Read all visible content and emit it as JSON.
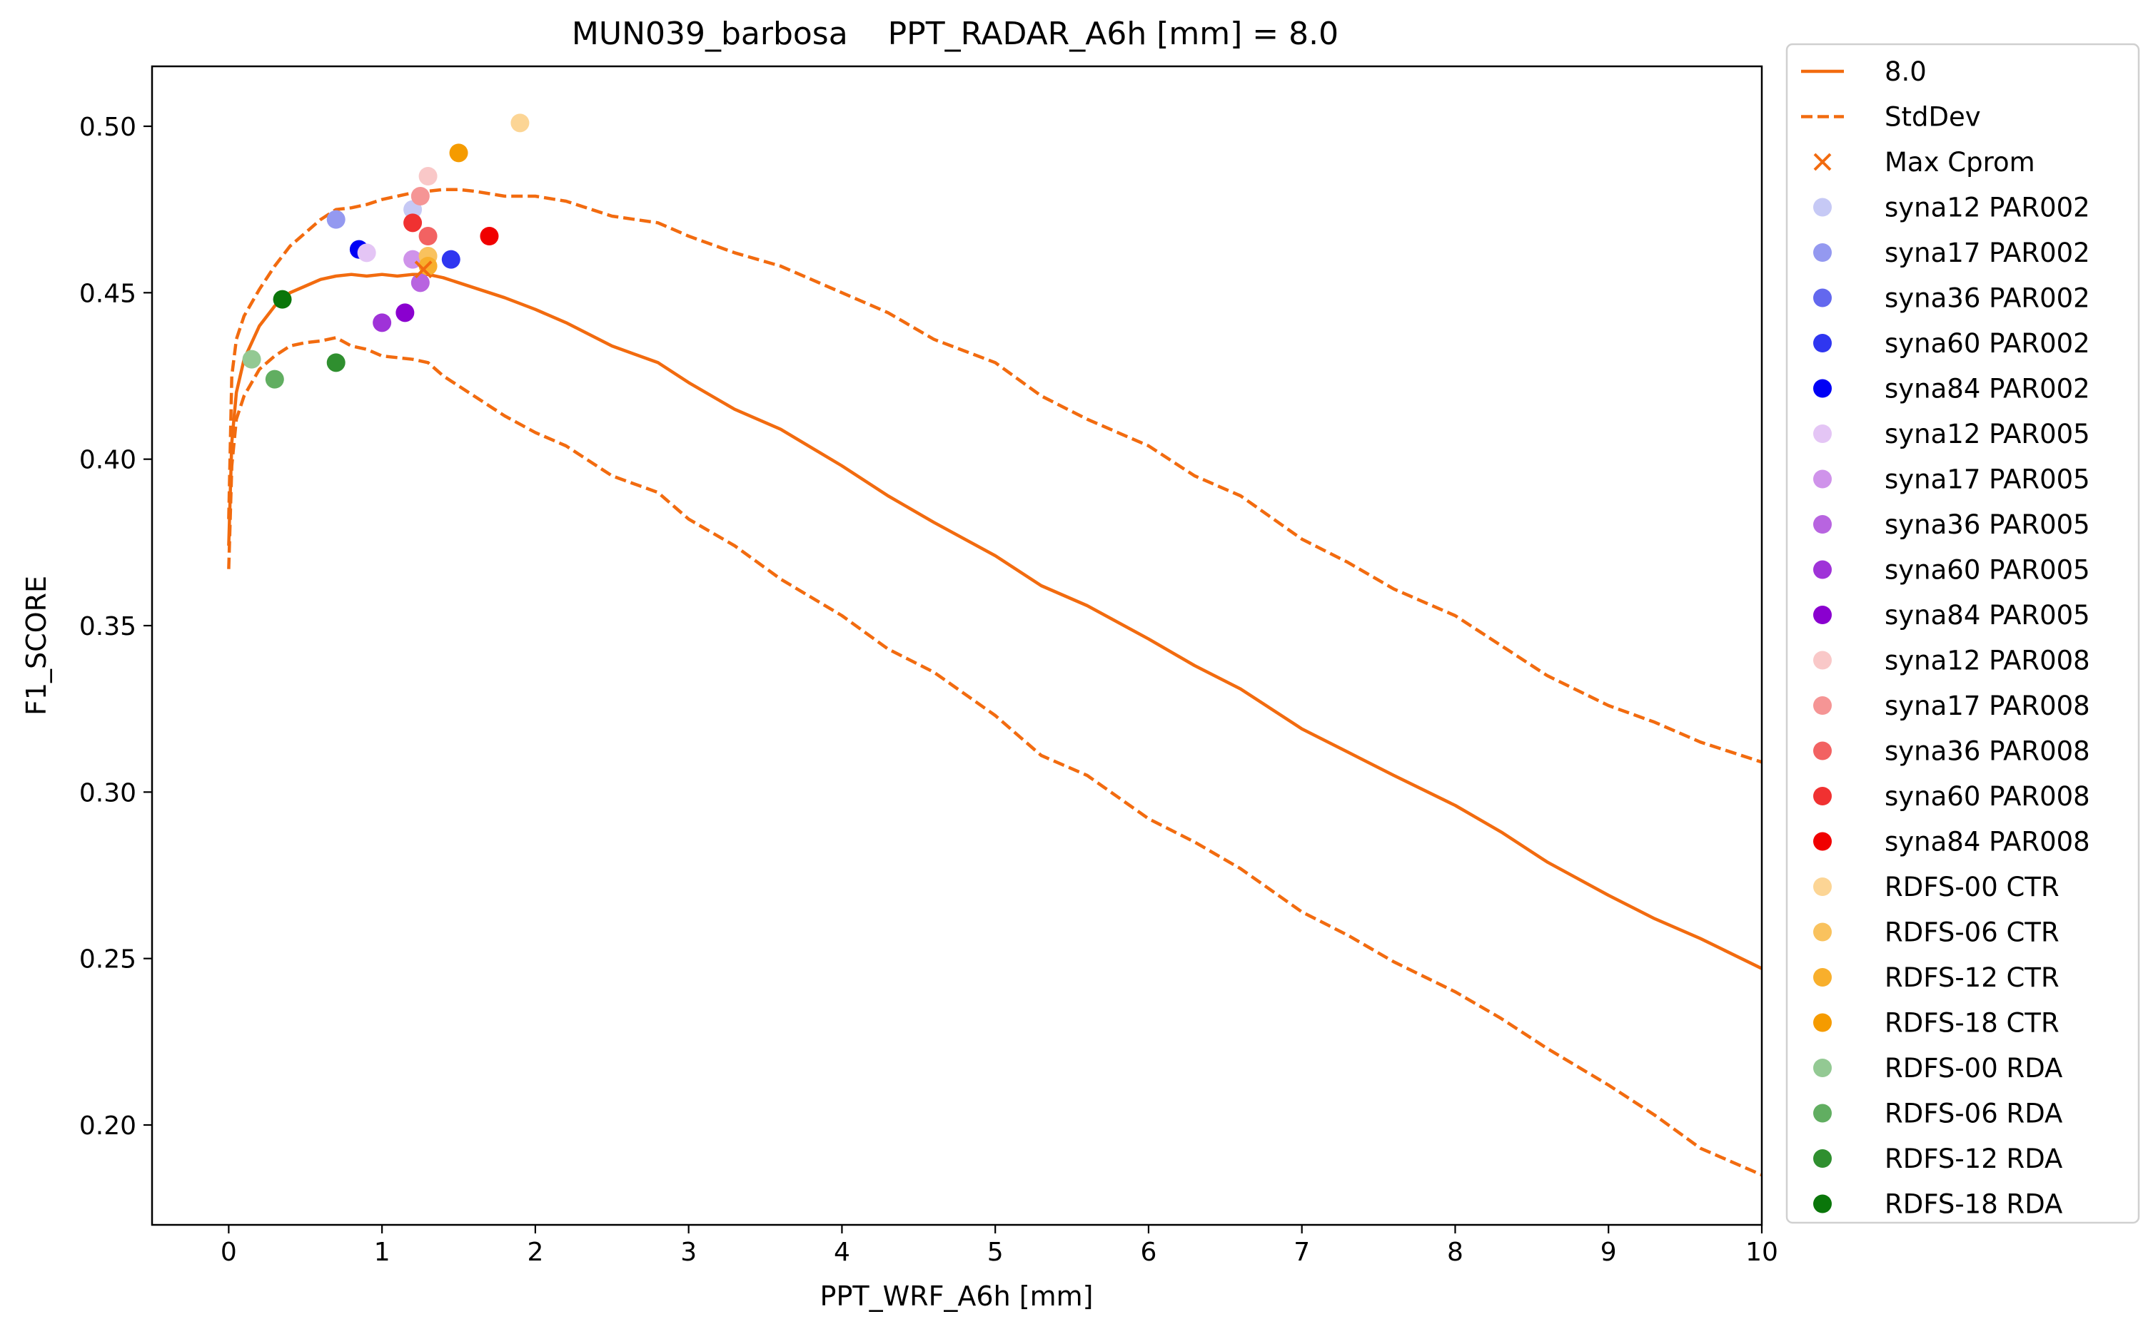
{
  "chart_data": {
    "type": "line",
    "title": "MUN039_barbosa    PPT_RADAR_A6h [mm] = 8.0",
    "xlabel": "PPT_WRF_A6h [mm]",
    "ylabel": "F1_SCORE",
    "xlim": [
      -0.5,
      10
    ],
    "ylim": [
      0.17,
      0.518
    ],
    "xticks": [
      0,
      1,
      2,
      3,
      4,
      5,
      6,
      7,
      8,
      9,
      10
    ],
    "yticks": [
      0.2,
      0.25,
      0.3,
      0.35,
      0.4,
      0.45,
      0.5
    ],
    "yticklabels": [
      "0.20",
      "0.25",
      "0.30",
      "0.35",
      "0.40",
      "0.45",
      "0.50"
    ],
    "grid": false,
    "legend_position": "outside-right",
    "line_color": "#f26b0f",
    "series": [
      {
        "name": "8.0",
        "style": "solid",
        "x": [
          0,
          0.02,
          0.05,
          0.1,
          0.2,
          0.3,
          0.4,
          0.5,
          0.6,
          0.7,
          0.8,
          0.9,
          1.0,
          1.1,
          1.2,
          1.3,
          1.4,
          1.5,
          1.6,
          1.8,
          2.0,
          2.2,
          2.5,
          2.8,
          3.0,
          3.3,
          3.6,
          4.0,
          4.3,
          4.6,
          5.0,
          5.3,
          5.6,
          6.0,
          6.3,
          6.6,
          7.0,
          7.3,
          7.6,
          8.0,
          8.3,
          8.6,
          9.0,
          9.3,
          9.6,
          10.0
        ],
        "y": [
          0.374,
          0.405,
          0.42,
          0.43,
          0.44,
          0.446,
          0.45,
          0.452,
          0.454,
          0.455,
          0.4555,
          0.455,
          0.4555,
          0.455,
          0.4555,
          0.4555,
          0.4545,
          0.453,
          0.4515,
          0.4485,
          0.445,
          0.441,
          0.434,
          0.429,
          0.423,
          0.415,
          0.409,
          0.398,
          0.389,
          0.381,
          0.371,
          0.362,
          0.356,
          0.346,
          0.338,
          0.331,
          0.319,
          0.312,
          0.305,
          0.296,
          0.288,
          0.279,
          0.269,
          0.262,
          0.256,
          0.247
        ]
      },
      {
        "name": "StdDev",
        "style": "dashed",
        "x": [
          0,
          0.02,
          0.05,
          0.1,
          0.2,
          0.3,
          0.4,
          0.5,
          0.6,
          0.7,
          0.8,
          0.9,
          1.0,
          1.1,
          1.2,
          1.3,
          1.4,
          1.5,
          1.6,
          1.8,
          2.0,
          2.2,
          2.5,
          2.8,
          3.0,
          3.3,
          3.6,
          4.0,
          4.3,
          4.6,
          5.0,
          5.3,
          5.6,
          6.0,
          6.3,
          6.6,
          7.0,
          7.3,
          7.6,
          8.0,
          8.3,
          8.6,
          9.0,
          9.3,
          9.6,
          10.0
        ],
        "y": [
          0.382,
          0.425,
          0.436,
          0.443,
          0.451,
          0.458,
          0.464,
          0.468,
          0.472,
          0.475,
          0.4755,
          0.4765,
          0.478,
          0.479,
          0.48,
          0.4805,
          0.481,
          0.481,
          0.4805,
          0.479,
          0.479,
          0.4775,
          0.473,
          0.471,
          0.467,
          0.462,
          0.458,
          0.45,
          0.444,
          0.436,
          0.429,
          0.419,
          0.412,
          0.404,
          0.395,
          0.389,
          0.376,
          0.369,
          0.361,
          0.353,
          0.344,
          0.335,
          0.326,
          0.321,
          0.315,
          0.309
        ]
      },
      {
        "name": "StdDev (lower)",
        "style": "dashed",
        "x": [
          0,
          0.02,
          0.05,
          0.1,
          0.2,
          0.3,
          0.4,
          0.5,
          0.6,
          0.7,
          0.8,
          0.9,
          1.0,
          1.1,
          1.2,
          1.3,
          1.4,
          1.5,
          1.6,
          1.8,
          2.0,
          2.2,
          2.5,
          2.8,
          3.0,
          3.3,
          3.6,
          4.0,
          4.3,
          4.6,
          5.0,
          5.3,
          5.6,
          6.0,
          6.3,
          6.6,
          7.0,
          7.3,
          7.6,
          8.0,
          8.3,
          8.6,
          9.0,
          9.3,
          9.6,
          10.0
        ],
        "y": [
          0.367,
          0.398,
          0.412,
          0.419,
          0.427,
          0.431,
          0.434,
          0.435,
          0.4355,
          0.4365,
          0.434,
          0.433,
          0.431,
          0.4305,
          0.43,
          0.429,
          0.425,
          0.422,
          0.419,
          0.413,
          0.408,
          0.404,
          0.395,
          0.39,
          0.382,
          0.374,
          0.364,
          0.353,
          0.343,
          0.336,
          0.323,
          0.311,
          0.305,
          0.292,
          0.285,
          0.277,
          0.264,
          0.257,
          0.249,
          0.24,
          0.232,
          0.223,
          0.212,
          0.203,
          0.193,
          0.185
        ]
      }
    ],
    "max_cprom": {
      "name": "Max Cprom",
      "x": 1.27,
      "y": 0.457,
      "color": "#f26b0f"
    },
    "points": [
      {
        "name": "syna12 PAR002",
        "color": "#c6c9f5",
        "x": 1.2,
        "y": 0.475
      },
      {
        "name": "syna17 PAR002",
        "color": "#9499f0",
        "x": 0.7,
        "y": 0.472
      },
      {
        "name": "syna36 PAR002",
        "color": "#6368ee",
        "x": 0.85,
        "y": 0.463
      },
      {
        "name": "syna60 PAR002",
        "color": "#2f36f0",
        "x": 1.45,
        "y": 0.46
      },
      {
        "name": "syna84 PAR002",
        "color": "#0000f5",
        "x": 0.85,
        "y": 0.463
      },
      {
        "name": "syna12 PAR005",
        "color": "#e4c5f5",
        "x": 0.9,
        "y": 0.462
      },
      {
        "name": "syna17 PAR005",
        "color": "#cf93ea",
        "x": 1.2,
        "y": 0.46
      },
      {
        "name": "syna36 PAR005",
        "color": "#b864e0",
        "x": 1.25,
        "y": 0.453
      },
      {
        "name": "syna60 PAR005",
        "color": "#9f33d8",
        "x": 1.0,
        "y": 0.441
      },
      {
        "name": "syna84 PAR005",
        "color": "#8a00cf",
        "x": 1.15,
        "y": 0.444
      },
      {
        "name": "syna12 PAR008",
        "color": "#f9c8c8",
        "x": 1.3,
        "y": 0.485
      },
      {
        "name": "syna17 PAR008",
        "color": "#f59595",
        "x": 1.25,
        "y": 0.479
      },
      {
        "name": "syna36 PAR008",
        "color": "#f26262",
        "x": 1.3,
        "y": 0.467
      },
      {
        "name": "syna60 PAR008",
        "color": "#f03131",
        "x": 1.2,
        "y": 0.471
      },
      {
        "name": "syna84 PAR008",
        "color": "#f00000",
        "x": 1.7,
        "y": 0.467
      },
      {
        "name": "RDFS-00 CTR",
        "color": "#fcd595",
        "x": 1.9,
        "y": 0.501
      },
      {
        "name": "RDFS-06 CTR",
        "color": "#f9c25e",
        "x": 1.3,
        "y": 0.461
      },
      {
        "name": "RDFS-12 CTR",
        "color": "#f8af2c",
        "x": 1.3,
        "y": 0.458
      },
      {
        "name": "RDFS-18 CTR",
        "color": "#f59b00",
        "x": 1.5,
        "y": 0.492
      },
      {
        "name": "RDFS-00 RDA",
        "color": "#93c993",
        "x": 0.15,
        "y": 0.43
      },
      {
        "name": "RDFS-06 RDA",
        "color": "#61ae61",
        "x": 0.3,
        "y": 0.424
      },
      {
        "name": "RDFS-12 RDA",
        "color": "#2f8f2f",
        "x": 0.7,
        "y": 0.429
      },
      {
        "name": "RDFS-18 RDA",
        "color": "#0a760a",
        "x": 0.35,
        "y": 0.448
      }
    ]
  }
}
